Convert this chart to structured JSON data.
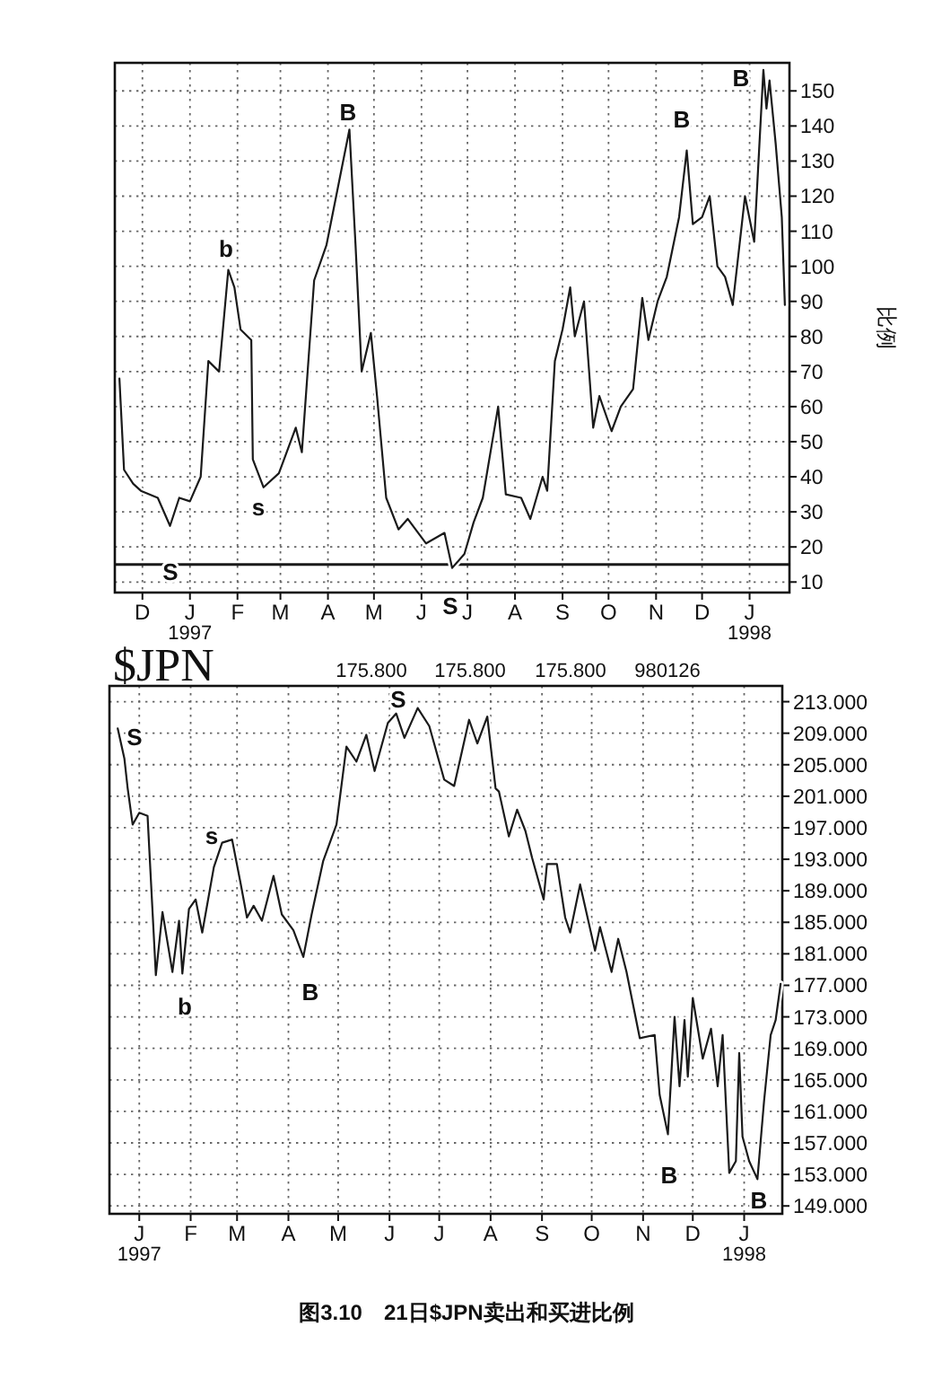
{
  "chart_data": [
    {
      "type": "line",
      "ylabel": "比例",
      "xlim": [
        "1996-11-13",
        "1998-01-27"
      ],
      "ylim": [
        7,
        158
      ],
      "xticks": [
        {
          "value": "1996-12-01",
          "label": "D"
        },
        {
          "value": "1997-01-01",
          "label": "J\n1997"
        },
        {
          "value": "1997-02-01",
          "label": "F"
        },
        {
          "value": "1997-03-01",
          "label": "M"
        },
        {
          "value": "1997-04-01",
          "label": "A"
        },
        {
          "value": "1997-05-01",
          "label": "M"
        },
        {
          "value": "1997-06-01",
          "label": "J"
        },
        {
          "value": "1997-07-01",
          "label": "J"
        },
        {
          "value": "1997-08-01",
          "label": "A"
        },
        {
          "value": "1997-09-01",
          "label": "S"
        },
        {
          "value": "1997-10-01",
          "label": "O"
        },
        {
          "value": "1997-11-01",
          "label": "N"
        },
        {
          "value": "1997-12-01",
          "label": "D"
        },
        {
          "value": "1998-01-01",
          "label": "J\n1998"
        }
      ],
      "yticks": [
        10,
        20,
        30,
        40,
        50,
        60,
        70,
        80,
        90,
        100,
        110,
        120,
        130,
        140,
        150
      ],
      "grid": true,
      "ref_lines": [
        {
          "axis": "y",
          "value": 15,
          "color": "#1a1a1a",
          "line_style": "solid"
        }
      ],
      "series": [
        {
          "color": "#1a1a1a",
          "x": [
            "1996-11-16",
            "1996-11-19",
            "1996-11-25",
            "1996-11-30",
            "1996-12-11",
            "1996-12-19",
            "1996-12-25",
            "1997-01-01",
            "1997-01-08",
            "1997-01-13",
            "1997-01-20",
            "1997-01-26",
            "1997-01-30",
            "1997-02-03",
            "1997-02-10",
            "1997-02-11",
            "1997-02-18",
            "1997-02-28",
            "1997-03-11",
            "1997-03-15",
            "1997-03-23",
            "1997-03-31",
            "1997-04-10",
            "1997-04-15",
            "1997-04-19",
            "1997-04-23",
            "1997-04-29",
            "1997-05-03",
            "1997-05-09",
            "1997-05-17",
            "1997-05-23",
            "1997-06-04",
            "1997-06-16",
            "1997-06-21",
            "1997-06-29",
            "1997-07-05",
            "1997-07-11",
            "1997-07-21",
            "1997-07-26",
            "1997-08-05",
            "1997-08-11",
            "1997-08-19",
            "1997-08-22",
            "1997-08-27",
            "1997-09-01",
            "1997-09-06",
            "1997-09-09",
            "1997-09-15",
            "1997-09-21",
            "1997-09-25",
            "1997-10-03",
            "1997-10-09",
            "1997-10-17",
            "1997-10-23",
            "1997-10-27",
            "1997-11-02",
            "1997-11-08",
            "1997-11-16",
            "1997-11-21",
            "1997-11-25",
            "1997-12-01",
            "1997-12-06",
            "1997-12-11",
            "1997-12-16",
            "1997-12-21",
            "1997-12-29",
            "1998-01-04",
            "1998-01-10",
            "1998-01-12",
            "1998-01-14",
            "1998-01-18",
            "1998-01-22",
            "1998-01-24"
          ],
          "values": [
            68,
            42,
            38,
            36,
            34,
            26,
            34,
            33,
            40,
            73,
            70,
            99,
            94,
            82,
            79,
            45,
            37,
            41,
            54,
            47,
            96,
            106,
            128,
            139,
            106,
            70,
            81,
            63,
            34,
            25,
            28,
            21,
            24,
            14,
            18,
            27,
            34,
            60,
            35,
            34,
            28,
            40,
            36,
            73,
            82,
            94,
            80,
            90,
            54,
            63,
            53,
            60,
            65,
            91,
            79,
            90,
            97,
            114,
            133,
            112,
            114,
            120,
            100,
            97,
            89,
            120,
            107,
            156,
            145,
            153,
            135,
            114,
            89
          ]
        }
      ],
      "annotations": [
        "S",
        "b",
        "s",
        "B",
        "S",
        "B",
        "B"
      ]
    },
    {
      "type": "line",
      "title": "$JPN",
      "xlim": [
        "1996-12-14",
        "1998-01-24"
      ],
      "ylim": [
        148,
        215
      ],
      "xticks": [
        {
          "value": "1997-01-01",
          "label": "J\n1997"
        },
        {
          "value": "1997-02-01",
          "label": "F"
        },
        {
          "value": "1997-03-01",
          "label": "M"
        },
        {
          "value": "1997-04-01",
          "label": "A"
        },
        {
          "value": "1997-05-01",
          "label": "M"
        },
        {
          "value": "1997-06-01",
          "label": "J"
        },
        {
          "value": "1997-07-01",
          "label": "J"
        },
        {
          "value": "1997-08-01",
          "label": "A"
        },
        {
          "value": "1997-09-01",
          "label": "S"
        },
        {
          "value": "1997-10-01",
          "label": "O"
        },
        {
          "value": "1997-11-01",
          "label": "N"
        },
        {
          "value": "1997-12-01",
          "label": "D"
        },
        {
          "value": "1998-01-01",
          "label": "J\n1998"
        }
      ],
      "yticks": [
        {
          "value": 149,
          "label": "149.000"
        },
        {
          "value": 153,
          "label": "153.000"
        },
        {
          "value": 157,
          "label": "157.000"
        },
        {
          "value": 161,
          "label": "161.000"
        },
        {
          "value": 165,
          "label": "165.000"
        },
        {
          "value": 169,
          "label": "169.000"
        },
        {
          "value": 173,
          "label": "173.000"
        },
        {
          "value": 177,
          "label": "177.000"
        },
        {
          "value": 181,
          "label": "181.000"
        },
        {
          "value": 185,
          "label": "185.000"
        },
        {
          "value": 189,
          "label": "189.000"
        },
        {
          "value": 193,
          "label": "193.000"
        },
        {
          "value": 197,
          "label": "197.000"
        },
        {
          "value": 201,
          "label": "201.000"
        },
        {
          "value": 205,
          "label": "205.000"
        },
        {
          "value": 209,
          "label": "209.000"
        },
        {
          "value": 213,
          "label": "213.000"
        }
      ],
      "grid": true,
      "series": [
        {
          "color": "#1a1a1a",
          "x": [
            "1996-12-19",
            "1996-12-23",
            "1996-12-25",
            "1996-12-28",
            "1997-01-01",
            "1997-01-06",
            "1997-01-11",
            "1997-01-15",
            "1997-01-21",
            "1997-01-25",
            "1997-01-27",
            "1997-01-31",
            "1997-02-04",
            "1997-02-08",
            "1997-02-15",
            "1997-02-20",
            "1997-02-26",
            "1997-03-03",
            "1997-03-07",
            "1997-03-11",
            "1997-03-16",
            "1997-03-23",
            "1997-03-28",
            "1997-04-04",
            "1997-04-10",
            "1997-04-15",
            "1997-04-22",
            "1997-04-30",
            "1997-05-06",
            "1997-05-12",
            "1997-05-18",
            "1997-05-23",
            "1997-05-31",
            "1997-06-05",
            "1997-06-10",
            "1997-06-18",
            "1997-06-25",
            "1997-07-04",
            "1997-07-10",
            "1997-07-19",
            "1997-07-24",
            "1997-07-30",
            "1997-08-04",
            "1997-08-06",
            "1997-08-12",
            "1997-08-17",
            "1997-08-22",
            "1997-08-26",
            "1997-09-02",
            "1997-09-04",
            "1997-09-10",
            "1997-09-15",
            "1997-09-18",
            "1997-09-24",
            "1997-10-03",
            "1997-10-06",
            "1997-10-13",
            "1997-10-17",
            "1997-10-22",
            "1997-10-30",
            "1997-11-08",
            "1997-11-11",
            "1997-11-16",
            "1997-11-20",
            "1997-11-23",
            "1997-11-26",
            "1997-11-28",
            "1997-12-01",
            "1997-12-07",
            "1997-12-12",
            "1997-12-16",
            "1997-12-19",
            "1997-12-23",
            "1997-12-27",
            "1997-12-29",
            "1997-12-31",
            "1998-01-04",
            "1998-01-09",
            "1998-01-13",
            "1998-01-17",
            "1998-01-20",
            "1998-01-23"
          ],
          "values": [
            209.6,
            205.8,
            202,
            197.4,
            198.9,
            198.5,
            178.3,
            186.3,
            178.7,
            185.2,
            178.5,
            186.7,
            187.9,
            183.7,
            192,
            195.1,
            195.5,
            190.1,
            185.6,
            187.1,
            185.2,
            190.9,
            186,
            184,
            180.6,
            186,
            192.8,
            197.4,
            207.3,
            205.4,
            208.8,
            204.2,
            210.3,
            211.5,
            208.4,
            212.2,
            209.9,
            203.1,
            202.3,
            210.7,
            207.7,
            211.1,
            202,
            201.6,
            195.9,
            199.3,
            196.6,
            193.2,
            187.9,
            192.4,
            192.4,
            185.6,
            183.7,
            189.8,
            181.4,
            184.4,
            178.7,
            182.9,
            178.7,
            170.3,
            170.7,
            163.1,
            158.1,
            173,
            164.2,
            172.6,
            165.4,
            175.4,
            167.7,
            171.5,
            164.2,
            170.7,
            153.2,
            154.7,
            168.4,
            157.8,
            154.7,
            152.4,
            162.3,
            170.7,
            172.6,
            177.2
          ]
        }
      ],
      "annotations": [
        "175.800",
        "175.800",
        "175.800",
        "980126",
        "S",
        "s",
        "b",
        "B",
        "S",
        "B",
        "B",
        "图3.10　21日$JPN卖出和买进比例"
      ]
    }
  ]
}
